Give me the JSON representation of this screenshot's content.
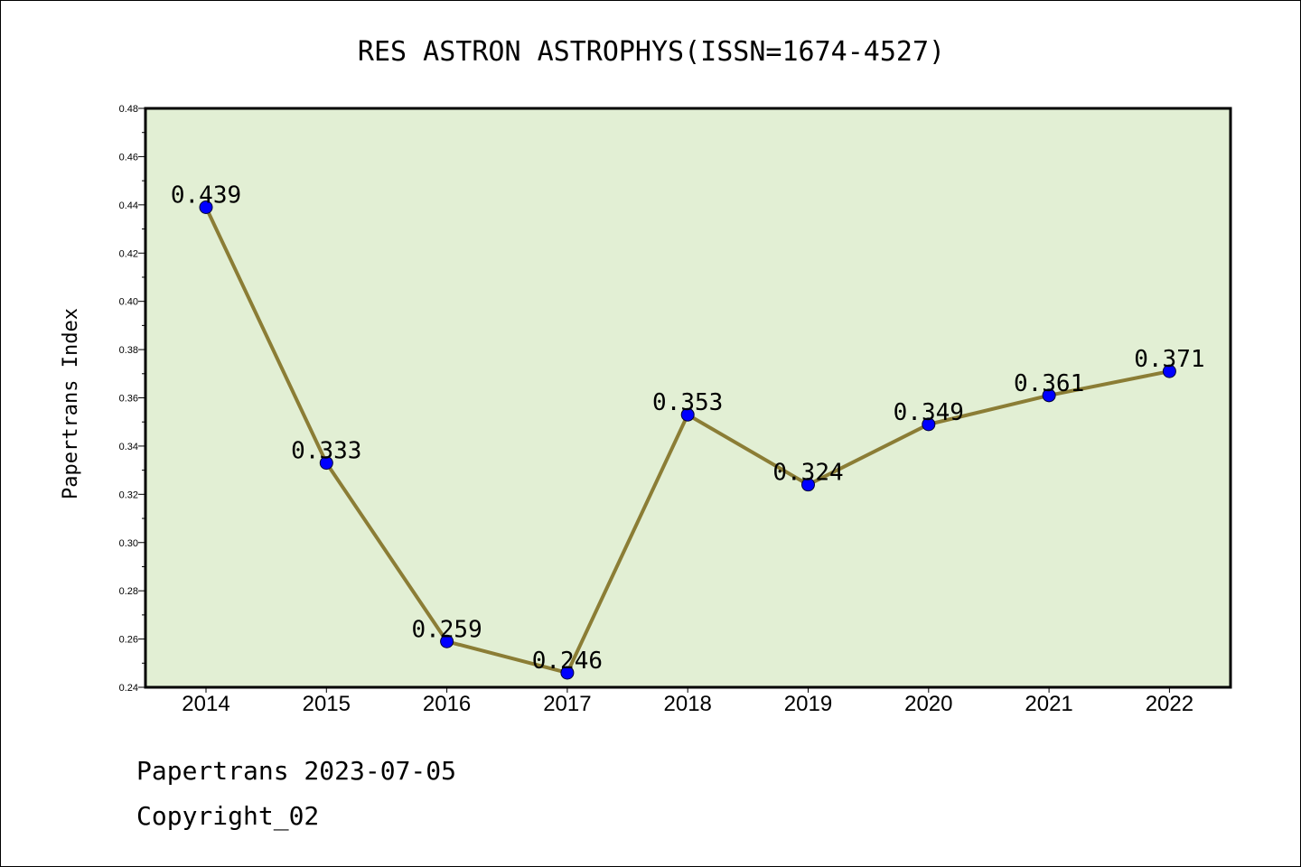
{
  "chart_data": {
    "type": "line",
    "title": "RES ASTRON ASTROPHYS(ISSN=1674-4527)",
    "ylabel": "Papertrans Index",
    "xlabel": "",
    "categories": [
      "2014",
      "2015",
      "2016",
      "2017",
      "2018",
      "2019",
      "2020",
      "2021",
      "2022"
    ],
    "series": [
      {
        "values": [
          0.439,
          0.333,
          0.259,
          0.246,
          0.353,
          0.324,
          0.349,
          0.361,
          0.371
        ],
        "labels": [
          "0.439",
          "0.333",
          "0.259",
          "0.246",
          "0.353",
          "0.324",
          "0.349",
          "0.361",
          "0.371"
        ]
      }
    ],
    "ylim": [
      0.24,
      0.48
    ],
    "yticks": [
      "0.24",
      "0.26",
      "0.28",
      "0.30",
      "0.32",
      "0.34",
      "0.36",
      "0.38",
      "0.40",
      "0.42",
      "0.44",
      "0.46",
      "0.48"
    ],
    "grid": false,
    "legend": "none",
    "colors": {
      "plot_background": "#e2efd4",
      "line": "#8b7d35",
      "marker": "#0000ff"
    }
  },
  "footer": {
    "date_text": "Papertrans 2023-07-05",
    "copyright_text": "Copyright_02"
  }
}
